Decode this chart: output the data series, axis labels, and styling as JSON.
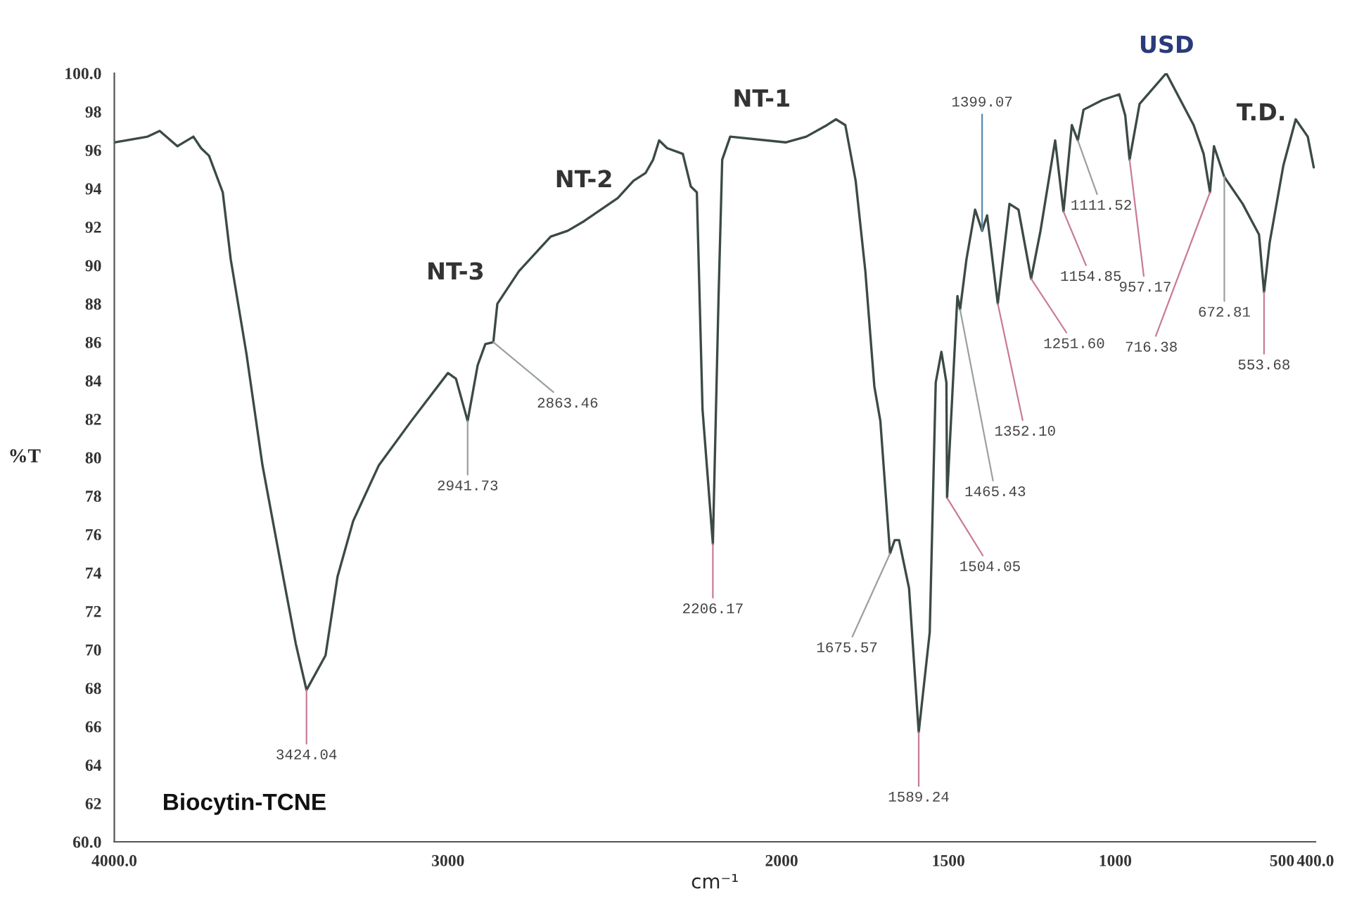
{
  "chart_data": {
    "type": "line",
    "xlabel": "cm⁻¹",
    "ylabel": "%T",
    "xlim": [
      4000,
      400
    ],
    "ylim": [
      60,
      100
    ],
    "xticks": [
      {
        "value": 4000,
        "label": "4000.0"
      },
      3000,
      2000,
      1500,
      1000,
      500,
      {
        "value": 400,
        "label": "400.0"
      }
    ],
    "yticks": [
      {
        "value": 60,
        "label": "60.0"
      },
      62,
      64,
      66,
      68,
      70,
      72,
      74,
      76,
      78,
      80,
      82,
      84,
      86,
      88,
      90,
      92,
      94,
      96,
      98,
      {
        "value": 100,
        "label": "100.0"
      }
    ],
    "grid": false,
    "legend": false,
    "marker": "none",
    "line_style": "solid",
    "series": [
      {
        "color": "#3c4a46",
        "x": [
          4000,
          3900,
          3864,
          3811,
          3763,
          3740,
          3716,
          3675,
          3651,
          3604,
          3556,
          3494,
          3456,
          3424,
          3367,
          3331,
          3284,
          3207,
          3110,
          3000,
          2976,
          2941,
          2911,
          2888,
          2864,
          2852,
          2787,
          2692,
          2641,
          2592,
          2491,
          2444,
          2408,
          2385,
          2367,
          2343,
          2296,
          2272,
          2254,
          2237,
          2206,
          2189,
          2178,
          2154,
          1988,
          1926,
          1864,
          1837,
          1809,
          1778,
          1749,
          1722,
          1704,
          1675,
          1661,
          1648,
          1618,
          1589,
          1556,
          1538,
          1521,
          1506,
          1504,
          1482,
          1473,
          1465,
          1446,
          1420,
          1399,
          1384,
          1352,
          1317,
          1290,
          1252,
          1224,
          1180,
          1155,
          1130,
          1112,
          1095,
          1039,
          988,
          970,
          957,
          927,
          847,
          765,
          735,
          716,
          704,
          673,
          618,
          569,
          554,
          537,
          496,
          459,
          423,
          405
        ],
        "values": [
          96.4,
          96.7,
          97.0,
          96.2,
          96.7,
          96.1,
          95.7,
          93.8,
          90.3,
          85.4,
          79.6,
          73.8,
          70.3,
          67.9,
          69.7,
          73.8,
          76.7,
          79.6,
          81.9,
          84.4,
          84.1,
          81.9,
          84.8,
          85.9,
          86.0,
          88.0,
          89.7,
          91.5,
          91.8,
          92.3,
          93.5,
          94.4,
          94.8,
          95.5,
          96.5,
          96.1,
          95.8,
          94.1,
          93.8,
          82.5,
          75.5,
          88.3,
          95.5,
          96.7,
          96.4,
          96.7,
          97.3,
          97.6,
          97.3,
          94.4,
          89.7,
          83.7,
          81.9,
          75.0,
          75.7,
          75.7,
          73.2,
          65.7,
          70.9,
          83.9,
          85.5,
          83.9,
          77.9,
          85.4,
          88.4,
          87.7,
          90.3,
          92.9,
          91.8,
          92.6,
          88.0,
          93.2,
          92.9,
          89.3,
          91.8,
          96.5,
          92.8,
          97.3,
          96.5,
          98.1,
          98.6,
          98.9,
          97.8,
          95.5,
          98.4,
          100.0,
          97.3,
          95.8,
          93.8,
          96.2,
          94.6,
          93.2,
          91.6,
          88.6,
          91.2,
          95.2,
          97.6,
          96.7,
          95.1
        ]
      }
    ],
    "annotations": [
      {
        "text": "3424.04",
        "x": 3424,
        "y": 67.9
      },
      {
        "text": "2941.73",
        "x": 2941,
        "y": 81.9
      },
      {
        "text": "2863.46",
        "x": 2864,
        "y": 86.0
      },
      {
        "text": "2206.17",
        "x": 2206,
        "y": 75.5
      },
      {
        "text": "1675.57",
        "x": 1675,
        "y": 75.0
      },
      {
        "text": "1589.24",
        "x": 1589,
        "y": 65.7
      },
      {
        "text": "1504.05",
        "x": 1504,
        "y": 77.9
      },
      {
        "text": "1465.43",
        "x": 1465,
        "y": 87.7
      },
      {
        "text": "1399.07",
        "x": 1399,
        "y": 91.8
      },
      {
        "text": "1352.10",
        "x": 1352,
        "y": 88.0
      },
      {
        "text": "1251.60",
        "x": 1252,
        "y": 89.3
      },
      {
        "text": "1154.85",
        "x": 1155,
        "y": 92.8
      },
      {
        "text": "1111.52",
        "x": 1112,
        "y": 96.5
      },
      {
        "text": "957.17",
        "x": 957,
        "y": 95.5
      },
      {
        "text": "716.38",
        "x": 716,
        "y": 93.8
      },
      {
        "text": "672.81",
        "x": 673,
        "y": 94.6
      },
      {
        "text": "553.68",
        "x": 554,
        "y": 88.6
      },
      "NT-3",
      "NT-2",
      "NT-1",
      "USD",
      "T.D.",
      "Biocytin-TCNE"
    ]
  }
}
